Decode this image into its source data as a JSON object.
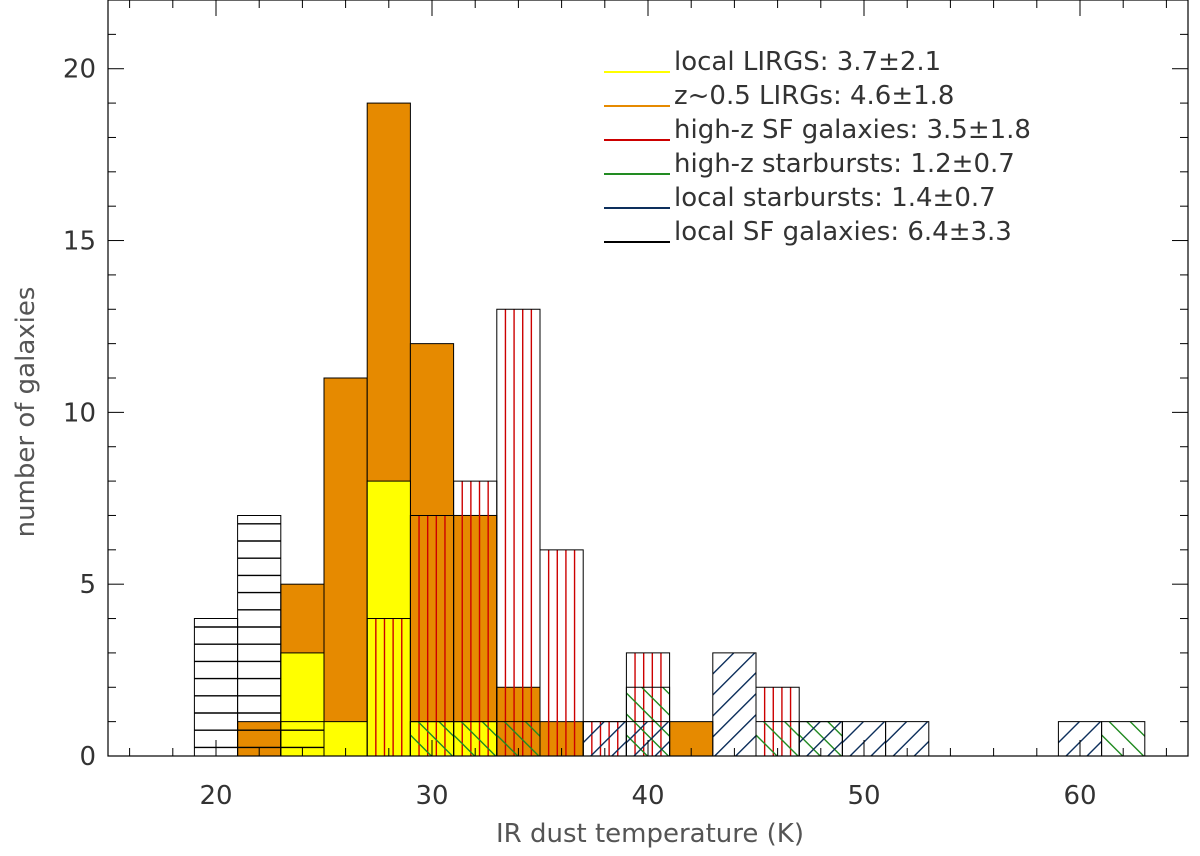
{
  "chart_data": {
    "type": "bar",
    "xlabel": "IR dust temperature (K)",
    "ylabel": "number of galaxies",
    "xlim": [
      15,
      65
    ],
    "ylim": [
      0,
      22
    ],
    "x_ticks": [
      "20",
      "30",
      "40",
      "50",
      "60"
    ],
    "y_ticks": [
      "0",
      "5",
      "10",
      "15",
      "20"
    ],
    "bin_width": 2,
    "grid": false,
    "legend_position": "top-right",
    "series": [
      {
        "name": "z~0.5 LIRGs",
        "label": "z~0.5 LIRGs: 4.6±1.8",
        "color": "#e68a00",
        "style": "solid",
        "bins": [
          [
            22,
            1
          ],
          [
            24,
            5
          ],
          [
            26,
            11
          ],
          [
            28,
            19
          ],
          [
            30,
            12
          ],
          [
            32,
            7
          ],
          [
            34,
            2
          ],
          [
            36,
            1
          ],
          [
            42,
            1
          ]
        ]
      },
      {
        "name": "local LIRGS",
        "label": "local LIRGS: 3.7±2.1",
        "color": "#ffff00",
        "style": "solid",
        "bins": [
          [
            24,
            3
          ],
          [
            26,
            1
          ],
          [
            28,
            8
          ],
          [
            30,
            1
          ],
          [
            32,
            1
          ]
        ]
      },
      {
        "name": "high-z SF galaxies",
        "label": "high-z SF galaxies: 3.5±1.8",
        "color": "#cc0000",
        "style": "vertical",
        "bins": [
          [
            28,
            4
          ],
          [
            30,
            7
          ],
          [
            32,
            8
          ],
          [
            34,
            13
          ],
          [
            36,
            6
          ],
          [
            38,
            1
          ],
          [
            40,
            3
          ],
          [
            46,
            2
          ]
        ]
      },
      {
        "name": "high-z starbursts",
        "label": "high-z starbursts: 1.2±0.7",
        "color": "#228b22",
        "style": "backslash",
        "bins": [
          [
            30,
            1
          ],
          [
            32,
            1
          ],
          [
            34,
            1
          ],
          [
            40,
            2
          ],
          [
            46,
            1
          ],
          [
            48,
            1
          ],
          [
            62,
            1
          ]
        ]
      },
      {
        "name": "local starbursts",
        "label": "local starbursts: 1.4±0.7",
        "color": "#0d2f5c",
        "style": "slash",
        "bins": [
          [
            38,
            1
          ],
          [
            40,
            1
          ],
          [
            44,
            3
          ],
          [
            48,
            1
          ],
          [
            50,
            1
          ],
          [
            52,
            1
          ],
          [
            60,
            1
          ]
        ]
      },
      {
        "name": "local SF galaxies",
        "label": "local SF galaxies: 6.4±3.3",
        "color": "#000000",
        "style": "horizontal",
        "bins": [
          [
            20,
            4
          ],
          [
            22,
            7
          ],
          [
            24,
            1
          ]
        ]
      }
    ],
    "legend_order": [
      "local LIRGS",
      "z~0.5 LIRGs",
      "high-z SF galaxies",
      "high-z starbursts",
      "local starbursts",
      "local SF galaxies"
    ]
  }
}
